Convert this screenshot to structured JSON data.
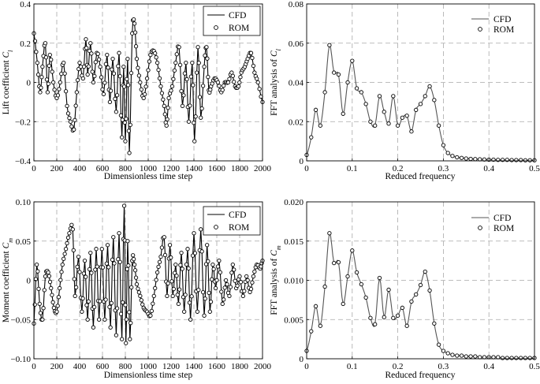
{
  "chart_data": [
    {
      "type": "line",
      "id": "lift_time",
      "title": "",
      "xlabel": "Dimensionless time step",
      "ylabel_main": "Lift coefficient ",
      "ylabel_sym": "C",
      "ylabel_sub": "l",
      "xlim": [
        0,
        2000
      ],
      "ylim": [
        -0.4,
        0.4
      ],
      "xticks": [
        0,
        200,
        400,
        600,
        800,
        1000,
        1200,
        1400,
        1600,
        1800,
        2000
      ],
      "yticks": [
        -0.4,
        -0.2,
        0,
        0.2,
        0.4
      ],
      "ytick_labels": [
        "−0.4",
        "−0.2",
        "0",
        "0.2",
        "0.4"
      ],
      "legend": [
        "CFD",
        "ROM"
      ],
      "legend_position": "top-right",
      "series": [
        {
          "name": "CFD",
          "style": "line"
        },
        {
          "name": "ROM",
          "style": "open-circle-markers"
        }
      ],
      "x": [
        0,
        30,
        55,
        75,
        100,
        120,
        140,
        170,
        200,
        230,
        260,
        290,
        320,
        350,
        375,
        400,
        430,
        455,
        470,
        495,
        520,
        550,
        580,
        610,
        640,
        665,
        690,
        720,
        745,
        770,
        785,
        800,
        820,
        835,
        860,
        880,
        900,
        930,
        960,
        990,
        1020,
        1050,
        1080,
        1110,
        1140,
        1160,
        1180,
        1210,
        1240,
        1270,
        1300,
        1330,
        1355,
        1385,
        1405,
        1435,
        1460,
        1490,
        1510,
        1530,
        1550,
        1580,
        1610,
        1640,
        1670,
        1700,
        1730,
        1760,
        1790,
        1815,
        1845,
        1870,
        1900,
        1930,
        1960,
        2000
      ],
      "values": [
        0.25,
        0.1,
        -0.05,
        0.08,
        0.2,
        -0.05,
        0.14,
        0.0,
        -0.08,
        0.0,
        0.1,
        -0.12,
        -0.2,
        -0.24,
        -0.05,
        0.1,
        0.02,
        0.22,
        0.04,
        0.2,
        0.0,
        0.15,
        0.08,
        -0.06,
        0.14,
        -0.1,
        0.12,
        -0.15,
        0.15,
        -0.28,
        0.08,
        -0.3,
        0.12,
        -0.36,
        0.25,
        0.3,
        0.12,
        0.0,
        -0.08,
        0.02,
        0.14,
        0.16,
        0.1,
        -0.02,
        -0.12,
        -0.22,
        -0.08,
        -0.02,
        0.1,
        0.18,
        -0.12,
        0.1,
        -0.2,
        0.1,
        -0.3,
        0.18,
        -0.18,
        0.08,
        0.18,
        -0.04,
        -0.02,
        0.02,
        0.0,
        -0.05,
        0.0,
        0.0,
        0.05,
        -0.02,
        -0.02,
        0.05,
        0.08,
        0.12,
        0.15,
        0.05,
        0.0,
        -0.1
      ]
    },
    {
      "type": "line",
      "id": "lift_fft",
      "title": "",
      "xlabel": "Reduced frequency",
      "ylabel_main": "FFT analysis of ",
      "ylabel_sym": "C",
      "ylabel_sub": "l",
      "xlim": [
        0,
        0.5
      ],
      "ylim": [
        0,
        0.08
      ],
      "xticks": [
        0,
        0.1,
        0.2,
        0.3,
        0.4,
        0.5
      ],
      "yticks": [
        0,
        0.02,
        0.04,
        0.06,
        0.08
      ],
      "ytick_labels": [
        "0",
        "0.02",
        "0.04",
        "0.06",
        "0.08"
      ],
      "legend": [
        "CFD",
        "ROM"
      ],
      "legend_position": "top-right",
      "series": [
        {
          "name": "CFD",
          "style": "line"
        },
        {
          "name": "ROM",
          "style": "open-circle-markers"
        }
      ],
      "x": [
        0.0,
        0.01,
        0.02,
        0.03,
        0.04,
        0.05,
        0.06,
        0.07,
        0.08,
        0.09,
        0.1,
        0.11,
        0.12,
        0.13,
        0.14,
        0.15,
        0.16,
        0.17,
        0.18,
        0.19,
        0.2,
        0.21,
        0.22,
        0.23,
        0.24,
        0.25,
        0.26,
        0.27,
        0.28,
        0.29,
        0.3,
        0.31,
        0.32,
        0.33,
        0.34,
        0.35,
        0.36,
        0.37,
        0.38,
        0.39,
        0.4,
        0.41,
        0.42,
        0.43,
        0.44,
        0.45,
        0.46,
        0.47,
        0.48,
        0.49,
        0.5
      ],
      "values": [
        0.003,
        0.012,
        0.026,
        0.018,
        0.035,
        0.059,
        0.045,
        0.044,
        0.024,
        0.04,
        0.051,
        0.037,
        0.035,
        0.029,
        0.02,
        0.018,
        0.033,
        0.025,
        0.019,
        0.033,
        0.018,
        0.022,
        0.023,
        0.015,
        0.026,
        0.029,
        0.033,
        0.038,
        0.031,
        0.018,
        0.008,
        0.004,
        0.0025,
        0.0018,
        0.0015,
        0.0012,
        0.001,
        0.0009,
        0.0008,
        0.0007,
        0.0006,
        0.0006,
        0.0005,
        0.0005,
        0.0005,
        0.0004,
        0.0004,
        0.0004,
        0.0003,
        0.0003,
        0.0003
      ]
    },
    {
      "type": "line",
      "id": "moment_time",
      "title": "",
      "xlabel": "Dimensionless time step",
      "ylabel_main": "Moment coefficient ",
      "ylabel_sym": "C",
      "ylabel_sub": "m",
      "xlim": [
        0,
        2000
      ],
      "ylim": [
        -0.1,
        0.1
      ],
      "xticks": [
        0,
        200,
        400,
        600,
        800,
        1000,
        1200,
        1400,
        1600,
        1800,
        2000
      ],
      "yticks": [
        -0.1,
        -0.05,
        0,
        0.05,
        0.1
      ],
      "ytick_labels": [
        "−0.10",
        "−0.05",
        "0",
        "0.05",
        "0.10"
      ],
      "legend": [
        "CFD",
        "ROM"
      ],
      "legend_position": "top-right",
      "series": [
        {
          "name": "CFD",
          "style": "line"
        },
        {
          "name": "ROM",
          "style": "open-circle-markers"
        }
      ],
      "x": [
        0,
        25,
        50,
        75,
        100,
        125,
        150,
        175,
        200,
        225,
        250,
        280,
        310,
        340,
        360,
        390,
        420,
        445,
        470,
        495,
        520,
        545,
        570,
        595,
        620,
        645,
        670,
        695,
        720,
        745,
        770,
        790,
        805,
        820,
        840,
        860,
        880,
        900,
        930,
        960,
        990,
        1020,
        1050,
        1080,
        1110,
        1140,
        1165,
        1190,
        1215,
        1240,
        1265,
        1290,
        1315,
        1345,
        1370,
        1400,
        1430,
        1460,
        1490,
        1515,
        1540,
        1565,
        1590,
        1620,
        1650,
        1680,
        1710,
        1740,
        1770,
        1800,
        1830,
        1860,
        1890,
        1920,
        1950,
        1980,
        2000
      ],
      "values": [
        -0.055,
        0.02,
        -0.03,
        -0.05,
        0.005,
        0.01,
        -0.01,
        -0.035,
        -0.04,
        -0.01,
        0.02,
        0.04,
        0.06,
        0.065,
        -0.02,
        0.03,
        -0.04,
        0.025,
        -0.05,
        0.035,
        -0.06,
        0.04,
        -0.05,
        0.04,
        -0.05,
        0.045,
        -0.06,
        0.055,
        -0.07,
        0.06,
        -0.075,
        0.095,
        -0.08,
        0.05,
        -0.075,
        0.025,
        0.02,
        -0.005,
        -0.02,
        -0.035,
        -0.04,
        -0.045,
        -0.02,
        0.01,
        0.03,
        0.055,
        -0.02,
        0.045,
        -0.02,
        0.02,
        -0.03,
        0.035,
        -0.04,
        0.04,
        -0.05,
        0.06,
        -0.04,
        0.065,
        -0.045,
        0.045,
        -0.04,
        0.02,
        -0.01,
        0.025,
        -0.03,
        0.0,
        -0.02,
        0.02,
        -0.01,
        0.005,
        -0.02,
        0.005,
        -0.015,
        0.005,
        0.02,
        0.015,
        0.025
      ]
    },
    {
      "type": "line",
      "id": "moment_fft",
      "title": "",
      "xlabel": "Reduced frequency",
      "ylabel_main": "FFT analysis of ",
      "ylabel_sym": "C",
      "ylabel_sub": "m",
      "xlim": [
        0,
        0.5
      ],
      "ylim": [
        0,
        0.02
      ],
      "xticks": [
        0,
        0.1,
        0.2,
        0.3,
        0.4,
        0.5
      ],
      "yticks": [
        0,
        0.005,
        0.01,
        0.015,
        0.02
      ],
      "ytick_labels": [
        "0",
        "0.005",
        "0.010",
        "0.015",
        "0.020"
      ],
      "legend": [
        "CFD",
        "ROM"
      ],
      "legend_position": "top-right",
      "series": [
        {
          "name": "CFD",
          "style": "line"
        },
        {
          "name": "ROM",
          "style": "open-circle-markers"
        }
      ],
      "x": [
        0.0,
        0.01,
        0.02,
        0.03,
        0.04,
        0.05,
        0.06,
        0.07,
        0.08,
        0.09,
        0.1,
        0.11,
        0.12,
        0.13,
        0.14,
        0.15,
        0.16,
        0.17,
        0.18,
        0.19,
        0.2,
        0.21,
        0.22,
        0.23,
        0.24,
        0.25,
        0.26,
        0.27,
        0.28,
        0.29,
        0.3,
        0.31,
        0.32,
        0.33,
        0.34,
        0.35,
        0.36,
        0.37,
        0.38,
        0.39,
        0.4,
        0.41,
        0.42,
        0.43,
        0.44,
        0.45,
        0.46,
        0.47,
        0.48,
        0.49,
        0.5
      ],
      "values": [
        0.001,
        0.0035,
        0.0067,
        0.0042,
        0.0092,
        0.016,
        0.0122,
        0.0123,
        0.007,
        0.0105,
        0.0138,
        0.011,
        0.0095,
        0.0078,
        0.0052,
        0.0044,
        0.0103,
        0.0053,
        0.0088,
        0.0052,
        0.0055,
        0.0065,
        0.0042,
        0.0073,
        0.0082,
        0.0094,
        0.0111,
        0.0087,
        0.0045,
        0.0018,
        0.001,
        0.0007,
        0.0005,
        0.0004,
        0.0004,
        0.0003,
        0.0003,
        0.0003,
        0.0002,
        0.0002,
        0.0002,
        0.0002,
        0.0002,
        0.0001,
        0.0001,
        0.0001,
        0.0001,
        0.0001,
        0.0001,
        0.0001,
        0.0001
      ]
    }
  ]
}
